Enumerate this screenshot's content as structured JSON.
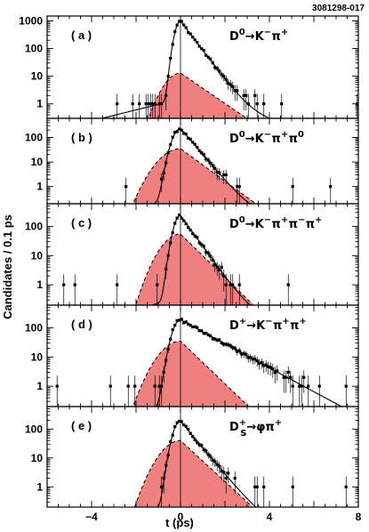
{
  "figure_id": "3081298-017",
  "colors": {
    "background_fill": "#f08080",
    "axes": "#000000",
    "points": "#000000"
  },
  "chart_data": {
    "type": "scatter",
    "xlabel": "t (ps)",
    "ylabel": "Candidates / 0.1 ps",
    "xlim": [
      -6,
      8
    ],
    "x_ticks": [
      -4,
      0,
      4,
      8
    ],
    "y_scale": "log",
    "grid": false,
    "panels": [
      {
        "label": "( a )",
        "decay": {
          "parent": "D",
          "parent_sup": "0",
          "parent_sub": "",
          "arrow": "→",
          "products": [
            [
              "K",
              "−"
            ],
            [
              "π",
              "+"
            ]
          ]
        },
        "ylim": [
          0.3,
          1500
        ],
        "y_ticks": [
          1,
          10,
          100,
          1000
        ],
        "tau": 0.41,
        "peak": 1000,
        "sigma": 0.18,
        "bkg_peak": 13,
        "bkg_sigma": 0.33,
        "bkg_right_end": 4.4
      },
      {
        "label": "( b )",
        "decay": {
          "parent": "D",
          "parent_sup": "0",
          "parent_sub": "",
          "arrow": "→",
          "products": [
            [
              "K",
              "−"
            ],
            [
              "π",
              "+"
            ],
            [
              "π",
              "0"
            ]
          ]
        },
        "ylim": [
          0.2,
          600
        ],
        "y_ticks": [
          1,
          10,
          100
        ],
        "tau": 0.41,
        "peak": 230,
        "sigma": 0.26,
        "bkg_peak": 35,
        "bkg_sigma": 0.42,
        "bkg_right_end": 4.3
      },
      {
        "label": "( c )",
        "decay": {
          "parent": "D",
          "parent_sup": "0",
          "parent_sub": "",
          "arrow": "→",
          "products": [
            [
              "K",
              "−"
            ],
            [
              "π",
              "+"
            ],
            [
              "π",
              "−"
            ],
            [
              "π",
              "+"
            ]
          ]
        },
        "ylim": [
          0.2,
          600
        ],
        "y_ticks": [
          1,
          10,
          100
        ],
        "tau": 0.41,
        "peak": 240,
        "sigma": 0.22,
        "bkg_peak": 55,
        "bkg_sigma": 0.38,
        "bkg_right_end": 4.1
      },
      {
        "label": "( d )",
        "decay": {
          "parent": "D",
          "parent_sup": "+",
          "parent_sub": "",
          "arrow": "→",
          "products": [
            [
              "K",
              "−"
            ],
            [
              "π",
              "+"
            ],
            [
              "π",
              "+"
            ]
          ]
        },
        "ylim": [
          0.2,
          600
        ],
        "y_ticks": [
          1,
          10,
          100
        ],
        "tau": 1.05,
        "peak": 190,
        "sigma": 0.26,
        "bkg_peak": 35,
        "bkg_sigma": 0.42,
        "bkg_right_end": 3.9
      },
      {
        "label": "( e )",
        "decay": {
          "parent": "D",
          "parent_sup": "+",
          "parent_sub": "S",
          "arrow": "→",
          "products": [
            [
              "φ",
              ""
            ],
            [
              "π",
              "+"
            ]
          ]
        },
        "ylim": [
          0.2,
          600
        ],
        "y_ticks": [
          1,
          10,
          100
        ],
        "tau": 0.47,
        "peak": 190,
        "sigma": 0.24,
        "bkg_peak": 40,
        "bkg_sigma": 0.4,
        "bkg_right_end": 4.1
      }
    ]
  }
}
